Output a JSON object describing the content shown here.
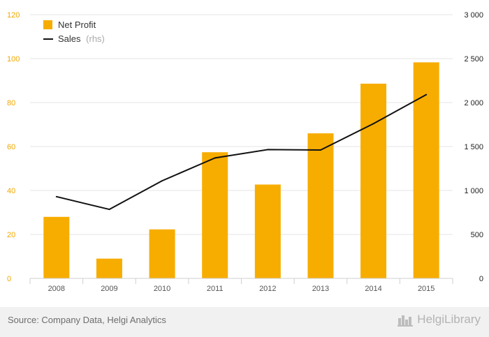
{
  "chart_data": {
    "type": "bar+line",
    "categories": [
      "2008",
      "2009",
      "2010",
      "2011",
      "2012",
      "2013",
      "2014",
      "2015"
    ],
    "series": [
      {
        "name": "Net Profit",
        "type": "bar",
        "axis": "left",
        "color": "#f7ad00",
        "values": [
          28,
          9,
          22.3,
          57.4,
          42.7,
          66,
          88.6,
          98.3
        ]
      },
      {
        "name": "Sales",
        "name_suffix": "(rhs)",
        "type": "line",
        "axis": "right",
        "color": "#111111",
        "values": [
          930,
          785,
          1110,
          1370,
          1465,
          1460,
          1760,
          2090
        ]
      }
    ],
    "y_left": {
      "min": 0,
      "max": 120,
      "ticks": [
        "0",
        "20",
        "40",
        "60",
        "80",
        "100",
        "120"
      ],
      "color": "#f0a800"
    },
    "y_right": {
      "min": 0,
      "max": 3000,
      "ticks": [
        "0",
        "500",
        "1 000",
        "1 500",
        "2 000",
        "2 500",
        "3 000"
      ],
      "color": "#222222"
    },
    "grid": "horizontal",
    "legend": "top-left"
  },
  "footer": {
    "source": "Source: Company Data, Helgi Analytics",
    "brand": "HelgiLibrary"
  }
}
